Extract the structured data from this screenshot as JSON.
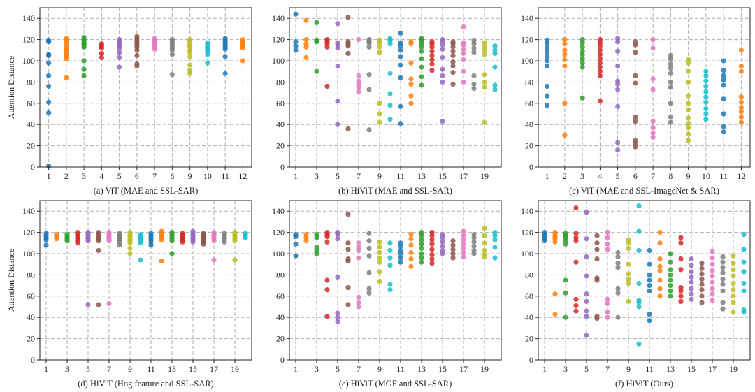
{
  "chart_data": {
    "type": "scatter",
    "ylabel": "Attention Distance",
    "ylim": [
      0,
      150
    ],
    "yticks": [
      0,
      20,
      40,
      60,
      80,
      100,
      120,
      140
    ],
    "palette": [
      "#1f77b4",
      "#ff7f0e",
      "#2ca02c",
      "#d62728",
      "#9467bd",
      "#8c564b",
      "#e377c2",
      "#7f7f7f",
      "#bcbd22",
      "#17becf"
    ],
    "panels": [
      {
        "caption": "(a) ViT (MAE and SSL-SAR)",
        "xticks": [
          1,
          2,
          3,
          4,
          5,
          6,
          7,
          8,
          9,
          10,
          11,
          12
        ],
        "xlim": [
          0.5,
          12.5
        ],
        "blocks": [
          [
            119,
            118,
            106,
            105,
            98,
            86,
            76,
            61,
            51,
            1
          ],
          [
            121,
            119,
            116,
            113,
            111,
            109,
            106,
            104,
            102,
            84
          ],
          [
            122,
            120,
            118,
            116,
            115,
            113,
            100,
            92,
            86
          ],
          [
            116,
            114,
            112,
            107,
            103
          ],
          [
            120,
            118,
            116,
            114,
            112,
            108,
            103,
            94
          ],
          [
            123,
            121,
            119,
            117,
            115,
            113,
            110,
            105,
            97,
            95
          ],
          [
            121,
            119,
            117,
            115,
            113,
            111
          ],
          [
            120,
            118,
            116,
            114,
            112,
            110,
            106,
            87
          ],
          [
            120,
            118,
            115,
            113,
            110,
            108,
            104,
            96,
            91,
            88
          ],
          [
            117,
            115,
            113,
            111,
            109,
            106,
            98
          ],
          [
            121,
            119,
            117,
            115,
            113,
            111,
            104,
            88
          ],
          [
            120,
            118,
            116,
            114,
            112,
            100
          ]
        ]
      },
      {
        "caption": "(b) HiViT (MAE and SSL-SAR)",
        "xticks": [
          1,
          3,
          5,
          7,
          9,
          11,
          13,
          15,
          17,
          19
        ],
        "xlim": [
          0.4,
          20.6
        ],
        "blocks": [
          [
            144,
            118,
            114,
            110
          ],
          [
            138,
            120,
            116,
            113,
            103
          ],
          [
            136,
            119,
            118,
            90
          ],
          [
            120,
            118,
            116,
            113,
            76
          ],
          [
            135,
            117,
            115,
            112,
            95,
            62,
            40
          ],
          [
            141,
            118,
            116,
            114,
            107,
            36
          ],
          [
            120,
            86,
            81,
            78,
            75,
            71
          ],
          [
            120,
            118,
            117,
            113,
            87,
            73,
            35
          ],
          [
            119,
            117,
            113,
            108,
            60,
            50,
            42
          ],
          [
            121,
            119,
            116,
            88,
            69,
            58,
            45
          ],
          [
            126,
            117,
            114,
            110,
            104,
            96,
            84,
            57,
            41
          ],
          [
            118,
            116,
            98,
            83,
            78,
            67,
            60
          ],
          [
            121,
            119,
            116,
            113,
            109,
            102,
            94,
            85,
            77
          ],
          [
            118,
            116,
            113,
            109,
            105,
            101,
            97,
            91
          ],
          [
            120,
            118,
            115,
            111,
            103,
            92,
            86,
            80,
            43
          ],
          [
            118,
            116,
            113,
            109,
            105,
            99,
            95,
            89,
            78
          ],
          [
            132,
            117,
            115,
            111,
            107,
            101,
            90,
            80
          ],
          [
            119,
            116,
            112,
            108,
            86,
            78,
            74
          ],
          [
            117,
            113,
            110,
            106,
            87,
            80,
            75,
            42
          ],
          [
            114,
            110,
            107,
            94,
            77,
            73
          ]
        ]
      },
      {
        "caption": "(c) ViT (MAE and SSL-ImageNet & SAR)",
        "xticks": [
          1,
          2,
          3,
          4,
          5,
          6,
          7,
          8,
          9,
          10,
          11,
          12
        ],
        "xlim": [
          0.5,
          12.5
        ],
        "blocks": [
          [
            119,
            116,
            112,
            108,
            104,
            100,
            95,
            76,
            67,
            58
          ],
          [
            120,
            116,
            110,
            106,
            101,
            95,
            60,
            30
          ],
          [
            120,
            117,
            113,
            109,
            106,
            102,
            98,
            94,
            65
          ],
          [
            120,
            117,
            114,
            110,
            106,
            102,
            98,
            94,
            90,
            86,
            62
          ],
          [
            121,
            118,
            109,
            95,
            81,
            78,
            73,
            57,
            23,
            16
          ],
          [
            118,
            115,
            108,
            86,
            79,
            47,
            43,
            25,
            22,
            19
          ],
          [
            120,
            112,
            83,
            73,
            43,
            37,
            32,
            28
          ],
          [
            105,
            102,
            97,
            93,
            88,
            80,
            75,
            60,
            47,
            42
          ],
          [
            101,
            98,
            90,
            80,
            67,
            60,
            54,
            46,
            41,
            37,
            31,
            25
          ],
          [
            90,
            86,
            81,
            76,
            71,
            66,
            61,
            55,
            50,
            45
          ],
          [
            100,
            91,
            86,
            82,
            77,
            64,
            50,
            38,
            33
          ],
          [
            110,
            95,
            90,
            66,
            61,
            56,
            52,
            47,
            42
          ]
        ]
      },
      {
        "caption": "(d) HiViT (Hog feature and SSL-SAR)",
        "xticks": [
          1,
          3,
          5,
          7,
          9,
          11,
          13,
          15,
          17,
          19
        ],
        "xlim": [
          0.4,
          20.6
        ],
        "blocks": [
          [
            119,
            117,
            115,
            113,
            108
          ],
          [
            118,
            116,
            114
          ],
          [
            118,
            116,
            114,
            112
          ],
          [
            120,
            118,
            116,
            114,
            112,
            110
          ],
          [
            120,
            118,
            116,
            114,
            112,
            52
          ],
          [
            120,
            118,
            116,
            114,
            112,
            103,
            52
          ],
          [
            120,
            118,
            116,
            114,
            112,
            53
          ],
          [
            119,
            117,
            115,
            113,
            111,
            108
          ],
          [
            120,
            118,
            116,
            114,
            112,
            110,
            105,
            100
          ],
          [
            118,
            116,
            114,
            112,
            110,
            94
          ],
          [
            119,
            117,
            115,
            113,
            111,
            108
          ],
          [
            121,
            119,
            117,
            115,
            113,
            93
          ],
          [
            120,
            118,
            116,
            114,
            112,
            100
          ],
          [
            119,
            117,
            115,
            113,
            111
          ],
          [
            121,
            119,
            117,
            115,
            113,
            111
          ],
          [
            119,
            117,
            115,
            113,
            111,
            109
          ],
          [
            120,
            118,
            116,
            114,
            112,
            94
          ],
          [
            119,
            117,
            115,
            113,
            111
          ],
          [
            120,
            118,
            116,
            114,
            112,
            94
          ],
          [
            119,
            117,
            115
          ]
        ]
      },
      {
        "caption": "(e) HiViT (MGF and SSL-SAR)",
        "xticks": [
          1,
          3,
          5,
          7,
          9,
          11,
          13,
          15,
          17,
          19
        ],
        "xlim": [
          0.4,
          20.6
        ],
        "blocks": [
          [
            118,
            116,
            109,
            98
          ],
          [
            118,
            115,
            112
          ],
          [
            118,
            115,
            106,
            103,
            100
          ],
          [
            120,
            118,
            116,
            111,
            75,
            66,
            41
          ],
          [
            120,
            118,
            114,
            78,
            44,
            40,
            36
          ],
          [
            137,
            110,
            104,
            95,
            93,
            68,
            52
          ],
          [
            110,
            106,
            103,
            96,
            59,
            54,
            50
          ],
          [
            119,
            112,
            105,
            98,
            82,
            67,
            63
          ],
          [
            111,
            106,
            101,
            96,
            92,
            83,
            74
          ],
          [
            110,
            103,
            96,
            89,
            71,
            66
          ],
          [
            110,
            107,
            103,
            100,
            96,
            92
          ],
          [
            118,
            114,
            108,
            101,
            95,
            88
          ],
          [
            120,
            117,
            113,
            109,
            105,
            100,
            96,
            92
          ],
          [
            120,
            117,
            113,
            109,
            104,
            99,
            95,
            91
          ],
          [
            118,
            115,
            111,
            107,
            103,
            100
          ],
          [
            112,
            108,
            104,
            100,
            96
          ],
          [
            121,
            117,
            113,
            109,
            105,
            101,
            97
          ],
          [
            118,
            115,
            111,
            107,
            103,
            100
          ],
          [
            124,
            117,
            110,
            103,
            99,
            97
          ],
          [
            120,
            117,
            113,
            106,
            96
          ]
        ]
      },
      {
        "caption": "(f) HiViT (Ours)",
        "xticks": [
          1,
          3,
          5,
          7,
          9,
          11,
          13,
          15,
          17,
          19
        ],
        "xlim": [
          0.4,
          20.6
        ],
        "blocks": [
          [
            120,
            118,
            116,
            114,
            112
          ],
          [
            120,
            118,
            116,
            114,
            111,
            62,
            43
          ],
          [
            119,
            117,
            115,
            112,
            109,
            75,
            63,
            40
          ],
          [
            143,
            119,
            115,
            112,
            92,
            57,
            51,
            46
          ],
          [
            139,
            114,
            97,
            79,
            62,
            55,
            46,
            41,
            23
          ],
          [
            117,
            110,
            104,
            95,
            77,
            75,
            41,
            39
          ],
          [
            120,
            115,
            109,
            104,
            57,
            53,
            45,
            40
          ],
          [
            101,
            97,
            91,
            87,
            67,
            63,
            40
          ],
          [
            113,
            110,
            105,
            90,
            81,
            76,
            72,
            55
          ],
          [
            145,
            121,
            103,
            72,
            56,
            54,
            50,
            15
          ],
          [
            103,
            90,
            80,
            75,
            70,
            65,
            43,
            37
          ],
          [
            120,
            110,
            95,
            88,
            84,
            75,
            67,
            60
          ],
          [
            100,
            92,
            85,
            80,
            75,
            70,
            65,
            60
          ],
          [
            115,
            110,
            95,
            85,
            68,
            65,
            60,
            55
          ],
          [
            95,
            89,
            83,
            78,
            73,
            67,
            62,
            57
          ],
          [
            91,
            86,
            81,
            76,
            71,
            66,
            60,
            54
          ],
          [
            102,
            96,
            90,
            84,
            79,
            73,
            67,
            62,
            56
          ],
          [
            97,
            92,
            87,
            82,
            76,
            71,
            65,
            54,
            48
          ],
          [
            98,
            91,
            85,
            79,
            72,
            66,
            60,
            54,
            45
          ],
          [
            118,
            104,
            92,
            83,
            72,
            65,
            47,
            45
          ]
        ]
      }
    ]
  }
}
